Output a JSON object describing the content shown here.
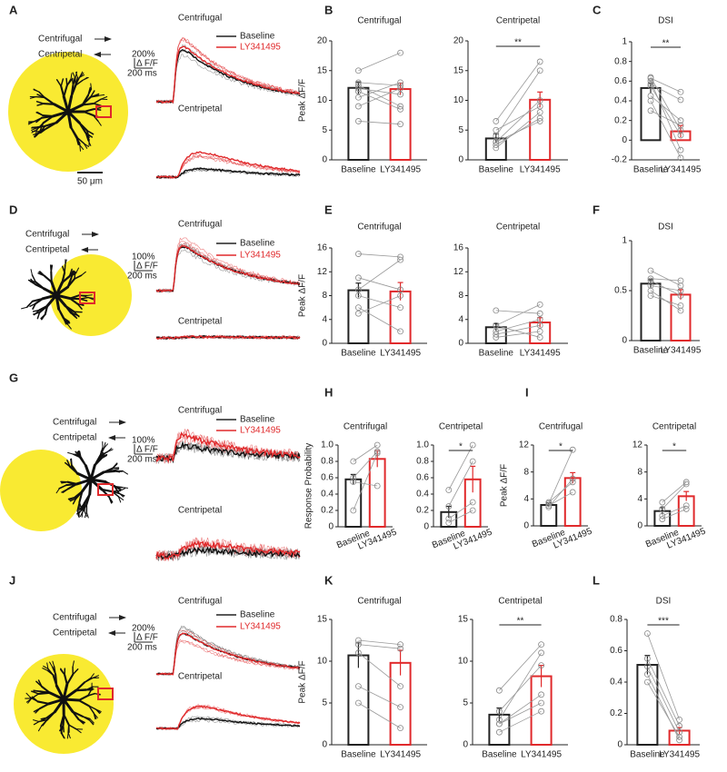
{
  "rows": [
    {
      "letter": "A",
      "directions": [
        "Centrifugal",
        "Centripetal"
      ],
      "trace_titles": [
        "Centrifugal",
        "Centripetal"
      ],
      "legend": [
        "Baseline",
        "LY341495"
      ],
      "scale": [
        "200%",
        "Δ F/F",
        "200 ms"
      ],
      "scalebar": "50 μm"
    },
    {
      "letter": "D",
      "directions": [
        "Centrifugal",
        "Centripetal"
      ],
      "trace_titles": [
        "Centrifugal",
        "Centripetal"
      ],
      "legend": [
        "Baseline",
        "LY341495"
      ],
      "scale": [
        "100%",
        "Δ F/F",
        "200 ms"
      ]
    },
    {
      "letter": "G",
      "directions": [
        "Centrifugal",
        "Centripetal"
      ],
      "trace_titles": [
        "Centrifugal",
        "Centripetal"
      ],
      "legend": [
        "Baseline",
        "LY341495"
      ],
      "scale": [
        "100%",
        "Δ F/F",
        "200 ms"
      ]
    },
    {
      "letter": "J",
      "directions": [
        "Centrifugal",
        "Centripetal"
      ],
      "trace_titles": [
        "Centrifugal",
        "Centripetal"
      ],
      "legend": [
        "Baseline",
        "LY341495"
      ],
      "scale": [
        "200%",
        "Δ F/F",
        "200 ms"
      ]
    }
  ],
  "chart_data": [
    {
      "type": "bar",
      "panel": "B",
      "title": "Centrifugal",
      "ylabel": "Peak ΔF/F",
      "categories": [
        "Baseline",
        "LY341495"
      ],
      "colors": [
        "#222222",
        "#e0292b"
      ],
      "values": [
        12.1,
        11.9
      ],
      "errors": [
        1.0,
        1.0
      ],
      "points": [
        [
          11.5,
          8.5
        ],
        [
          13,
          12.5
        ],
        [
          12,
          11
        ],
        [
          9,
          12
        ],
        [
          6.5,
          6
        ],
        [
          10.5,
          13
        ],
        [
          12.5,
          9
        ],
        [
          15,
          18
        ]
      ],
      "ylim": [
        0,
        20
      ],
      "yticks": [
        0,
        5,
        10,
        15,
        20
      ]
    },
    {
      "type": "bar",
      "title": "Centripetal",
      "categories": [
        "Baseline",
        "LY341495"
      ],
      "colors": [
        "#222222",
        "#e0292b"
      ],
      "values": [
        3.6,
        10.1
      ],
      "errors": [
        0.8,
        1.3
      ],
      "points": [
        [
          3,
          10
        ],
        [
          4,
          15
        ],
        [
          6.5,
          16.5
        ],
        [
          2,
          8
        ],
        [
          3,
          6.5
        ],
        [
          5,
          9
        ],
        [
          2.5,
          7
        ]
      ],
      "ylim": [
        0,
        20
      ],
      "yticks": [
        0,
        5,
        10,
        15,
        20
      ],
      "significance": "**"
    },
    {
      "type": "bar",
      "panel": "C",
      "title": "DSI",
      "categories": [
        "Baseline",
        "LY341495"
      ],
      "colors": [
        "#222222",
        "#e0292b"
      ],
      "values": [
        0.53,
        0.09
      ],
      "errors": [
        0.05,
        0.06
      ],
      "points": [
        [
          0.63,
          0.49
        ],
        [
          0.57,
          0.41
        ],
        [
          0.45,
          0.2
        ],
        [
          0.64,
          0.1
        ],
        [
          0.6,
          -0.1
        ],
        [
          0.4,
          -0.18
        ],
        [
          0.55,
          0.05
        ],
        [
          0.3,
          0.15
        ]
      ],
      "ylim": [
        -0.2,
        1
      ],
      "yticks": [
        -0.2,
        0,
        0.2,
        0.4,
        0.6,
        0.8,
        1
      ],
      "significance": "**"
    },
    {
      "type": "bar",
      "panel": "E",
      "title": "Centrifugal",
      "ylabel": "Peak ΔF/F",
      "categories": [
        "Baseline",
        "LY341495"
      ],
      "colors": [
        "#222222",
        "#e0292b"
      ],
      "values": [
        8.9,
        8.7
      ],
      "errors": [
        1.2,
        1.5
      ],
      "points": [
        [
          15,
          14.5
        ],
        [
          11,
          9
        ],
        [
          9,
          14
        ],
        [
          8,
          6
        ],
        [
          6,
          2
        ],
        [
          5,
          8
        ]
      ],
      "ylim": [
        0,
        16
      ],
      "yticks": [
        0,
        4,
        8,
        12,
        16
      ]
    },
    {
      "type": "bar",
      "title": "Centripetal",
      "categories": [
        "Baseline",
        "LY341495"
      ],
      "colors": [
        "#222222",
        "#e0292b"
      ],
      "values": [
        2.7,
        3.5
      ],
      "errors": [
        0.6,
        0.8
      ],
      "points": [
        [
          5.5,
          5
        ],
        [
          3,
          6.5
        ],
        [
          2,
          4
        ],
        [
          1,
          2
        ],
        [
          1.5,
          3
        ],
        [
          3,
          1
        ]
      ],
      "ylim": [
        0,
        16
      ],
      "yticks": [
        0,
        4,
        8,
        12,
        16
      ]
    },
    {
      "type": "bar",
      "panel": "F",
      "title": "DSI",
      "categories": [
        "Baseline",
        "LY341495"
      ],
      "colors": [
        "#222222",
        "#e0292b"
      ],
      "values": [
        0.57,
        0.46
      ],
      "errors": [
        0.04,
        0.05
      ],
      "points": [
        [
          0.7,
          0.55
        ],
        [
          0.62,
          0.6
        ],
        [
          0.55,
          0.5
        ],
        [
          0.5,
          0.3
        ],
        [
          0.45,
          0.35
        ],
        [
          0.6,
          0.45
        ]
      ],
      "ylim": [
        0,
        1
      ],
      "yticks": [
        0,
        0.5,
        1
      ]
    },
    {
      "type": "bar",
      "panel": "H",
      "title": "Centrifugal",
      "ylabel": "Response Probability",
      "categories": [
        "Baseline",
        "LY341495"
      ],
      "colors": [
        "#222222",
        "#e0292b"
      ],
      "values": [
        0.58,
        0.83
      ],
      "errors": [
        0.06,
        0.1
      ],
      "points": [
        [
          0.8,
          1.0
        ],
        [
          0.6,
          0.92
        ],
        [
          0.55,
          0.5
        ],
        [
          0.2,
          0.9
        ]
      ],
      "ylim": [
        0,
        1
      ],
      "yticks": [
        0,
        0.2,
        0.4,
        0.6,
        0.8,
        {
          "value": 1,
          "label": "1.0"
        }
      ]
    },
    {
      "type": "bar",
      "title": "Centripetal",
      "categories": [
        "Baseline",
        "LY341495"
      ],
      "colors": [
        "#222222",
        "#e0292b"
      ],
      "values": [
        0.18,
        0.58
      ],
      "errors": [
        0.07,
        0.16
      ],
      "points": [
        [
          0.45,
          1.0
        ],
        [
          0.25,
          0.8
        ],
        [
          0.1,
          0.3
        ],
        [
          0.05,
          0.2
        ]
      ],
      "ylim": [
        0,
        1
      ],
      "yticks": [
        0,
        0.2,
        0.4,
        0.6,
        0.8,
        {
          "value": 1,
          "label": "1.0"
        }
      ],
      "significance": "*"
    },
    {
      "type": "bar",
      "panel": "I",
      "title": "Centrifugal",
      "ylabel": "Peak ΔF/F",
      "categories": [
        "Baseline",
        "LY341495"
      ],
      "colors": [
        "#222222",
        "#e0292b"
      ],
      "values": [
        3.1,
        7.1
      ],
      "errors": [
        0.3,
        0.8
      ],
      "points": [
        [
          3.3,
          11.3
        ],
        [
          3.5,
          6.5
        ],
        [
          2.8,
          7
        ],
        [
          3,
          5
        ]
      ],
      "ylim": [
        0,
        12
      ],
      "yticks": [
        0,
        4,
        8,
        12
      ],
      "significance": "*"
    },
    {
      "type": "bar",
      "title": "Centripetal",
      "categories": [
        "Baseline",
        "LY341495"
      ],
      "colors": [
        "#222222",
        "#e0292b"
      ],
      "values": [
        2.2,
        4.4
      ],
      "errors": [
        0.5,
        0.7
      ],
      "points": [
        [
          3.5,
          6.5
        ],
        [
          2.5,
          6.2
        ],
        [
          1.5,
          3
        ],
        [
          1,
          2.5
        ]
      ],
      "ylim": [
        0,
        12
      ],
      "yticks": [
        0,
        4,
        8,
        12
      ],
      "significance": "*"
    },
    {
      "type": "bar",
      "panel": "K",
      "title": "Centrifugal",
      "ylabel": "Peak ΔF/F",
      "categories": [
        "Baseline",
        "LY341495"
      ],
      "colors": [
        "#222222",
        "#e0292b"
      ],
      "values": [
        10.7,
        9.8
      ],
      "errors": [
        1.5,
        1.5
      ],
      "points": [
        [
          12.5,
          12
        ],
        [
          12,
          11.5
        ],
        [
          11,
          7
        ],
        [
          7,
          4.5
        ],
        [
          5,
          2
        ]
      ],
      "ylim": [
        0,
        15
      ],
      "yticks": [
        0,
        5,
        10,
        15
      ]
    },
    {
      "type": "bar",
      "title": "Centripetal",
      "categories": [
        "Baseline",
        "LY341495"
      ],
      "colors": [
        "#222222",
        "#e0292b"
      ],
      "values": [
        3.6,
        8.2
      ],
      "errors": [
        0.8,
        1.3
      ],
      "points": [
        [
          6.5,
          12
        ],
        [
          4,
          9.5
        ],
        [
          2.5,
          6
        ],
        [
          2.5,
          5
        ],
        [
          1.5,
          4
        ],
        [
          3,
          11
        ]
      ],
      "ylim": [
        0,
        15
      ],
      "yticks": [
        0,
        5,
        10,
        15
      ],
      "significance": "**"
    },
    {
      "type": "bar",
      "panel": "L",
      "title": "DSI",
      "categories": [
        "Baseline",
        "LY341495"
      ],
      "colors": [
        "#222222",
        "#e0292b"
      ],
      "values": [
        0.51,
        0.09
      ],
      "errors": [
        0.06,
        0.02
      ],
      "points": [
        [
          0.71,
          0.16
        ],
        [
          0.55,
          0.12
        ],
        [
          0.5,
          0.08
        ],
        [
          0.4,
          0.05
        ],
        [
          0.45,
          0.03
        ]
      ],
      "ylim": [
        0,
        0.8
      ],
      "yticks": [
        0,
        0.2,
        0.4,
        0.6,
        0.8
      ],
      "significance": "***"
    }
  ]
}
